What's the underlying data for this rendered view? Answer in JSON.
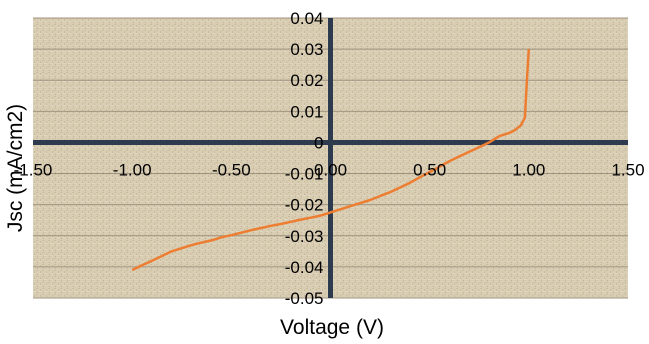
{
  "chart_data": {
    "type": "line",
    "title": "",
    "xlabel": "Voltage (V)",
    "ylabel": "Jsc (mA/cm2)",
    "xlim": [
      -1.5,
      1.5
    ],
    "ylim": [
      -0.05,
      0.04
    ],
    "x_ticks": [
      -1.5,
      -1.0,
      -0.5,
      0.0,
      0.5,
      1.0,
      1.5
    ],
    "x_tick_labels": [
      "-1.50",
      "-1.00",
      "-0.50",
      "0.00",
      "0.50",
      "1.00",
      "1.50"
    ],
    "y_ticks": [
      0.04,
      0.03,
      0.02,
      0.01,
      0,
      -0.01,
      -0.02,
      -0.03,
      -0.04,
      -0.05
    ],
    "y_tick_labels": [
      "0.04",
      "0.03",
      "0.02",
      "0.01",
      "0",
      "-0.01",
      "-0.02",
      "-0.03",
      "-0.04",
      "-0.05"
    ],
    "grid": true,
    "legend": "none",
    "colors": {
      "series": "#ED7D31",
      "axes": "#2E3B4E",
      "plot_bg": "#D8CCB2",
      "gridline": "#A09480"
    },
    "series": [
      {
        "x": [
          -1.0,
          -0.95,
          -0.9,
          -0.85,
          -0.8,
          -0.75,
          -0.7,
          -0.65,
          -0.6,
          -0.55,
          -0.5,
          -0.45,
          -0.4,
          -0.35,
          -0.3,
          -0.25,
          -0.2,
          -0.15,
          -0.1,
          -0.05,
          0.0,
          0.05,
          0.1,
          0.15,
          0.2,
          0.25,
          0.3,
          0.35,
          0.4,
          0.45,
          0.5,
          0.55,
          0.6,
          0.65,
          0.7,
          0.75,
          0.8,
          0.85,
          0.9,
          0.93,
          0.96,
          0.98,
          0.99,
          1.0
        ],
        "y": [
          -0.041,
          -0.0395,
          -0.038,
          -0.0365,
          -0.035,
          -0.034,
          -0.033,
          -0.0322,
          -0.0315,
          -0.0305,
          -0.0298,
          -0.029,
          -0.0282,
          -0.0275,
          -0.0268,
          -0.0262,
          -0.0255,
          -0.0248,
          -0.0242,
          -0.0235,
          -0.0225,
          -0.0215,
          -0.0205,
          -0.0195,
          -0.0185,
          -0.0172,
          -0.016,
          -0.0145,
          -0.013,
          -0.0112,
          -0.0095,
          -0.0078,
          -0.006,
          -0.0045,
          -0.003,
          -0.0015,
          0.0,
          0.002,
          0.003,
          0.004,
          0.0055,
          0.008,
          0.02,
          0.03
        ]
      }
    ]
  }
}
